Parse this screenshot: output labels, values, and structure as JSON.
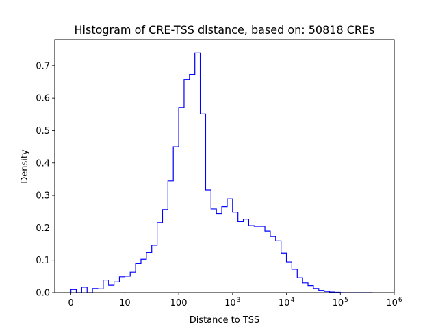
{
  "chart_data": {
    "type": "histogram-step",
    "title": "Histogram of CRE-TSS distance, based on: 50818 CREs",
    "xlabel": "Distance to TSS",
    "ylabel": "Density",
    "x_scale": "symlog",
    "xlim": [
      -0.3,
      6
    ],
    "ylim": [
      0,
      0.78
    ],
    "x_ticks": [
      {
        "value": 0,
        "base": "0",
        "exp": ""
      },
      {
        "value": 1,
        "base": "10",
        "exp": ""
      },
      {
        "value": 2,
        "base": "100",
        "exp": ""
      },
      {
        "value": 3,
        "base": "10",
        "exp": "3"
      },
      {
        "value": 4,
        "base": "10",
        "exp": "4"
      },
      {
        "value": 5,
        "base": "10",
        "exp": "5"
      },
      {
        "value": 6,
        "base": "10",
        "exp": "6"
      }
    ],
    "y_ticks": [
      0.0,
      0.1,
      0.2,
      0.3,
      0.4,
      0.5,
      0.6,
      0.7
    ],
    "y_tick_labels": [
      "0.0",
      "0.1",
      "0.2",
      "0.3",
      "0.4",
      "0.5",
      "0.6",
      "0.7"
    ],
    "line_color": "#0000ff",
    "grid": false,
    "bin_edges": [
      0.0,
      0.1,
      0.2,
      0.3,
      0.4,
      0.5,
      0.6,
      0.7,
      0.8,
      0.9,
      1.0,
      1.1,
      1.2,
      1.3,
      1.4,
      1.5,
      1.6,
      1.7,
      1.8,
      1.9,
      2.0,
      2.1,
      2.2,
      2.3,
      2.4,
      2.5,
      2.6,
      2.7,
      2.8,
      2.9,
      3.0,
      3.1,
      3.2,
      3.3,
      3.4,
      3.5,
      3.6,
      3.7,
      3.8,
      3.9,
      4.0,
      4.1,
      4.2,
      4.3,
      4.4,
      4.5,
      4.6,
      4.7,
      4.8,
      4.9,
      5.0,
      5.1,
      5.2,
      5.3,
      5.4,
      5.5,
      5.6
    ],
    "density": [
      0.01,
      0.0,
      0.017,
      0.0,
      0.013,
      0.012,
      0.039,
      0.023,
      0.033,
      0.049,
      0.051,
      0.063,
      0.09,
      0.103,
      0.124,
      0.146,
      0.216,
      0.256,
      0.345,
      0.45,
      0.571,
      0.658,
      0.673,
      0.739,
      0.551,
      0.317,
      0.258,
      0.244,
      0.265,
      0.289,
      0.248,
      0.219,
      0.227,
      0.207,
      0.205,
      0.205,
      0.19,
      0.173,
      0.16,
      0.122,
      0.095,
      0.072,
      0.046,
      0.03,
      0.022,
      0.013,
      0.007,
      0.004,
      0.002,
      0.001,
      0.0,
      0.0,
      0.0,
      0.0,
      0.0,
      0.0
    ]
  }
}
